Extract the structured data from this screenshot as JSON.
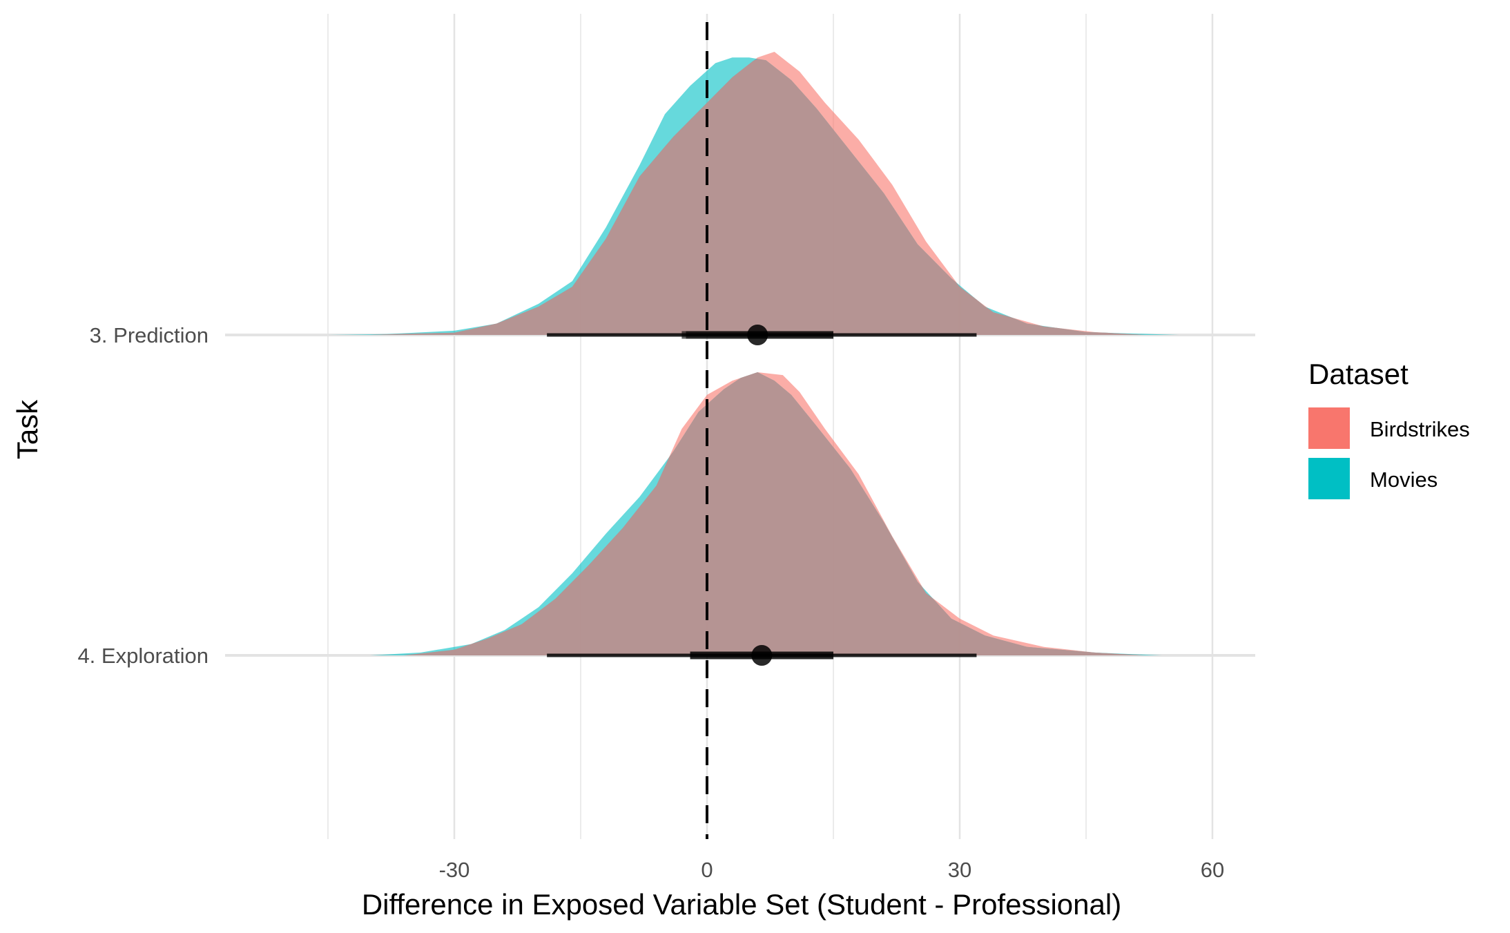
{
  "chart_data": {
    "type": "density-ridge",
    "xlabel": "Difference in Exposed Variable Set (Student - Professional)",
    "ylabel": "Task",
    "xlim": [
      -45,
      65
    ],
    "x_ticks": [
      -30,
      0,
      30,
      60
    ],
    "x_tick_labels": [
      "-30",
      "0",
      "30",
      "60"
    ],
    "x_minor_gridlines": [
      -45,
      -15,
      15,
      45
    ],
    "reference_line": {
      "x": 0,
      "style": "dashed"
    },
    "grid": true,
    "legend": {
      "title": "Dataset",
      "placement": "right",
      "entries": [
        {
          "label": "Birdstrikes",
          "color": "#F8766D"
        },
        {
          "label": "Movies",
          "color": "#00BFC4"
        }
      ]
    },
    "overlap_color": "#B99190",
    "categories": [
      "3. Prediction",
      "4. Exploration"
    ],
    "series": [
      {
        "name": "Birdstrikes",
        "color": "#F8766D",
        "densities": [
          {
            "category": "3. Prediction",
            "points": [
              [
                -40,
                0.0
              ],
              [
                -36,
                0.004
              ],
              [
                -30,
                0.008
              ],
              [
                -25,
                0.04
              ],
              [
                -20,
                0.1
              ],
              [
                -16,
                0.17
              ],
              [
                -12,
                0.34
              ],
              [
                -8,
                0.56
              ],
              [
                -4,
                0.7
              ],
              [
                0,
                0.82
              ],
              [
                3,
                0.91
              ],
              [
                6,
                0.98
              ],
              [
                8,
                1.0
              ],
              [
                11,
                0.93
              ],
              [
                14,
                0.82
              ],
              [
                18,
                0.69
              ],
              [
                22,
                0.53
              ],
              [
                26,
                0.33
              ],
              [
                30,
                0.17
              ],
              [
                34,
                0.08
              ],
              [
                40,
                0.03
              ],
              [
                46,
                0.01
              ],
              [
                52,
                0.0
              ]
            ]
          },
          {
            "category": "4. Exploration",
            "points": [
              [
                -36,
                0.0
              ],
              [
                -30,
                0.02
              ],
              [
                -26,
                0.06
              ],
              [
                -22,
                0.11
              ],
              [
                -18,
                0.2
              ],
              [
                -14,
                0.32
              ],
              [
                -10,
                0.45
              ],
              [
                -6,
                0.6
              ],
              [
                -3,
                0.8
              ],
              [
                0,
                0.92
              ],
              [
                3,
                0.97
              ],
              [
                6,
                1.0
              ],
              [
                9,
                0.99
              ],
              [
                11,
                0.93
              ],
              [
                14,
                0.8
              ],
              [
                18,
                0.64
              ],
              [
                22,
                0.42
              ],
              [
                26,
                0.22
              ],
              [
                30,
                0.13
              ],
              [
                34,
                0.07
              ],
              [
                40,
                0.03
              ],
              [
                46,
                0.01
              ],
              [
                52,
                0.0
              ]
            ]
          }
        ],
        "intervals": [
          {
            "category": "3. Prediction",
            "median": 6,
            "inner": [
              -3,
              15
            ],
            "outer": [
              -19,
              32
            ]
          },
          {
            "category": "4. Exploration",
            "median": 6.5,
            "inner": [
              -2,
              15
            ],
            "outer": [
              -19,
              32
            ]
          }
        ]
      },
      {
        "name": "Movies",
        "color": "#00BFC4",
        "densities": [
          {
            "category": "3. Prediction",
            "points": [
              [
                -45,
                0.0
              ],
              [
                -38,
                0.003
              ],
              [
                -30,
                0.015
              ],
              [
                -25,
                0.04
              ],
              [
                -20,
                0.11
              ],
              [
                -16,
                0.19
              ],
              [
                -12,
                0.38
              ],
              [
                -8,
                0.6
              ],
              [
                -5,
                0.78
              ],
              [
                -2,
                0.88
              ],
              [
                1,
                0.96
              ],
              [
                3,
                0.98
              ],
              [
                5,
                0.98
              ],
              [
                7,
                0.97
              ],
              [
                10,
                0.9
              ],
              [
                13,
                0.8
              ],
              [
                17,
                0.65
              ],
              [
                21,
                0.5
              ],
              [
                25,
                0.32
              ],
              [
                29,
                0.2
              ],
              [
                33,
                0.1
              ],
              [
                38,
                0.04
              ],
              [
                45,
                0.01
              ],
              [
                56,
                0.0
              ]
            ]
          },
          {
            "category": "4. Exploration",
            "points": [
              [
                -40,
                0.0
              ],
              [
                -34,
                0.01
              ],
              [
                -28,
                0.04
              ],
              [
                -24,
                0.09
              ],
              [
                -20,
                0.17
              ],
              [
                -16,
                0.29
              ],
              [
                -12,
                0.43
              ],
              [
                -8,
                0.56
              ],
              [
                -4,
                0.72
              ],
              [
                -1,
                0.86
              ],
              [
                2,
                0.94
              ],
              [
                4,
                0.98
              ],
              [
                6,
                1.0
              ],
              [
                8,
                0.97
              ],
              [
                10,
                0.92
              ],
              [
                13,
                0.81
              ],
              [
                17,
                0.66
              ],
              [
                21,
                0.47
              ],
              [
                25,
                0.26
              ],
              [
                29,
                0.13
              ],
              [
                33,
                0.07
              ],
              [
                38,
                0.03
              ],
              [
                46,
                0.01
              ],
              [
                54,
                0.0
              ]
            ]
          }
        ],
        "intervals": [
          {
            "category": "3. Prediction",
            "median": 6,
            "inner": [
              -2.5,
              15
            ],
            "outer": [
              -19,
              32
            ]
          },
          {
            "category": "4. Exploration",
            "median": 6.5,
            "inner": [
              -2,
              15
            ],
            "outer": [
              -19,
              32
            ]
          }
        ]
      }
    ]
  }
}
